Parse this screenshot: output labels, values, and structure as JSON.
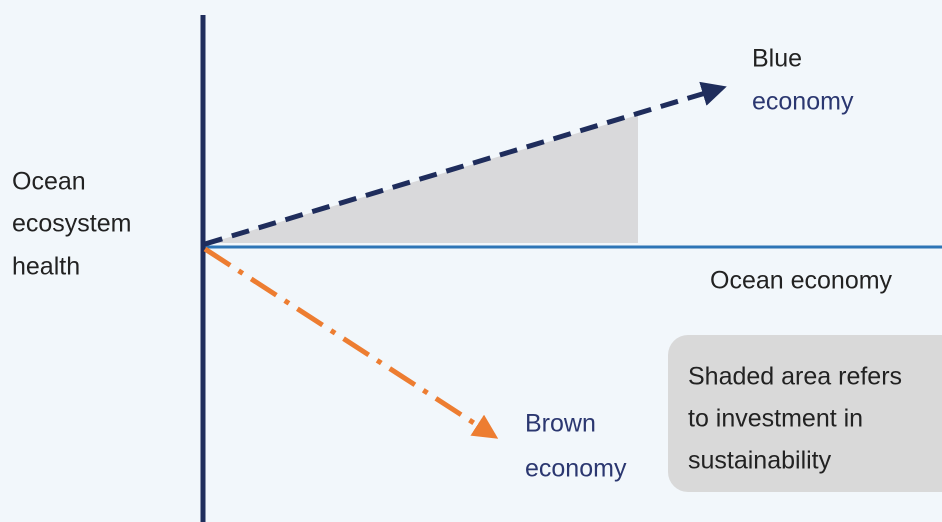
{
  "y_axis_label": [
    "Ocean",
    "ecosystem",
    "health"
  ],
  "x_axis_label": "Ocean economy",
  "blue_economy": {
    "lines": [
      "Blue",
      "economy"
    ]
  },
  "brown_economy": {
    "lines": [
      "Brown",
      "economy"
    ]
  },
  "note": {
    "lines": [
      "Shaded area refers",
      "to investment in",
      "sustainability"
    ]
  }
}
